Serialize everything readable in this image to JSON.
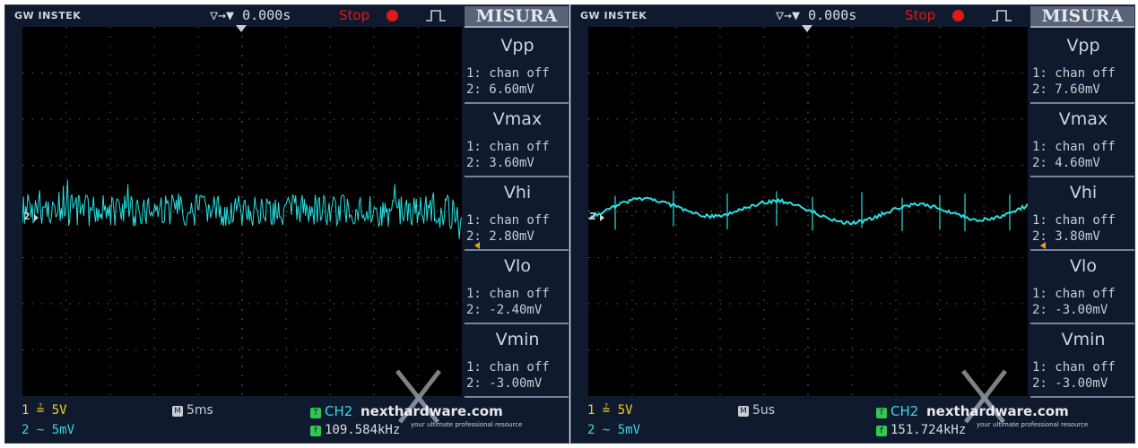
{
  "scopes": [
    {
      "brand": "GW INSTEK",
      "time_offset": "▽→▼ 0.000s",
      "run_state": "Stop",
      "menu_title": "MISURA",
      "channel_marker": "2",
      "measurements": [
        {
          "title": "Vpp",
          "line1": "1: chan off",
          "line2": "2: 6.60mV"
        },
        {
          "title": "Vmax",
          "line1": "1: chan off",
          "line2": "2: 3.60mV"
        },
        {
          "title": "Vhi",
          "line1": "1: chan off",
          "line2": "2: 2.80mV"
        },
        {
          "title": "Vlo",
          "line1": "1: chan off",
          "line2": "2: -2.40mV"
        },
        {
          "title": "Vmin",
          "line1": "1: chan off",
          "line2": "2: -3.00mV"
        }
      ],
      "ch1": "1 ≟ 5V",
      "ch2": "2 ∼ 5mV",
      "timebase": "5ms",
      "trigger_source": "CH2",
      "frequency": "109.584kHz",
      "trace_style": "noise",
      "trace_color": "#28e0e0"
    },
    {
      "brand": "GW INSTEK",
      "time_offset": "▽→▼ 0.000s",
      "run_state": "Stop",
      "menu_title": "MISURA",
      "channel_marker": "2",
      "measurements": [
        {
          "title": "Vpp",
          "line1": "1: chan off",
          "line2": "2: 7.60mV"
        },
        {
          "title": "Vmax",
          "line1": "1: chan off",
          "line2": "2: 4.60mV"
        },
        {
          "title": "Vhi",
          "line1": "1: chan off",
          "line2": "2: 3.80mV"
        },
        {
          "title": "Vlo",
          "line1": "1: chan off",
          "line2": "2: -3.00mV"
        },
        {
          "title": "Vmin",
          "line1": "1: chan off",
          "line2": "2: -3.00mV"
        }
      ],
      "ch1": "1 ≟ 5V",
      "ch2": "2 ∼ 5mV",
      "timebase": "5us",
      "trigger_source": "CH2",
      "frequency": "151.724kHz",
      "trace_style": "ripple",
      "trace_color": "#28e0e0"
    }
  ],
  "watermark": {
    "text": "nexthardware.com",
    "tagline": "your ultimate professional resource"
  }
}
